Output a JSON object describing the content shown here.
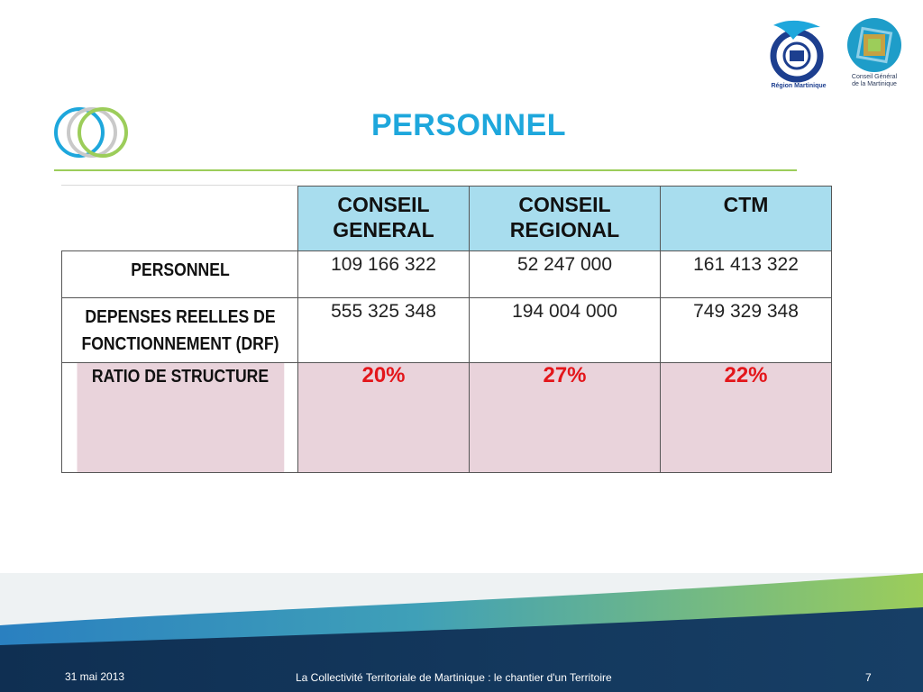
{
  "slide": {
    "title": "PERSONNEL"
  },
  "logos": {
    "region_caption": "Région Martinique",
    "cg_caption_line1": "Conseil Général",
    "cg_caption_line2": "de la Martinique"
  },
  "table": {
    "columns": [
      "CONSEIL\nGENERAL",
      "CONSEIL\nREGIONAL",
      "CTM"
    ],
    "rows": [
      {
        "label": "PERSONNEL",
        "values": [
          "109 166 322",
          "52 247 000",
          "161 413 322"
        ]
      },
      {
        "label": "DEPENSES REELLES DE FONCTIONNEMENT (DRF)",
        "values": [
          "555 325 348",
          "194 004 000",
          "749 329 348"
        ]
      },
      {
        "label": "RATIO DE STRUCTURE",
        "values": [
          "20%",
          "27%",
          "22%"
        ]
      }
    ]
  },
  "footer": {
    "date": "31 mai 2013",
    "title": "La Collectivité Territoriale de Martinique : le chantier d'un Territoire",
    "page": "7"
  },
  "colors": {
    "title": "#1ea7dc",
    "header_fill": "#a8ddee",
    "ratio_fill": "#e9d3db",
    "ratio_text": "#e3161b",
    "rule": "#9ccd5a"
  }
}
